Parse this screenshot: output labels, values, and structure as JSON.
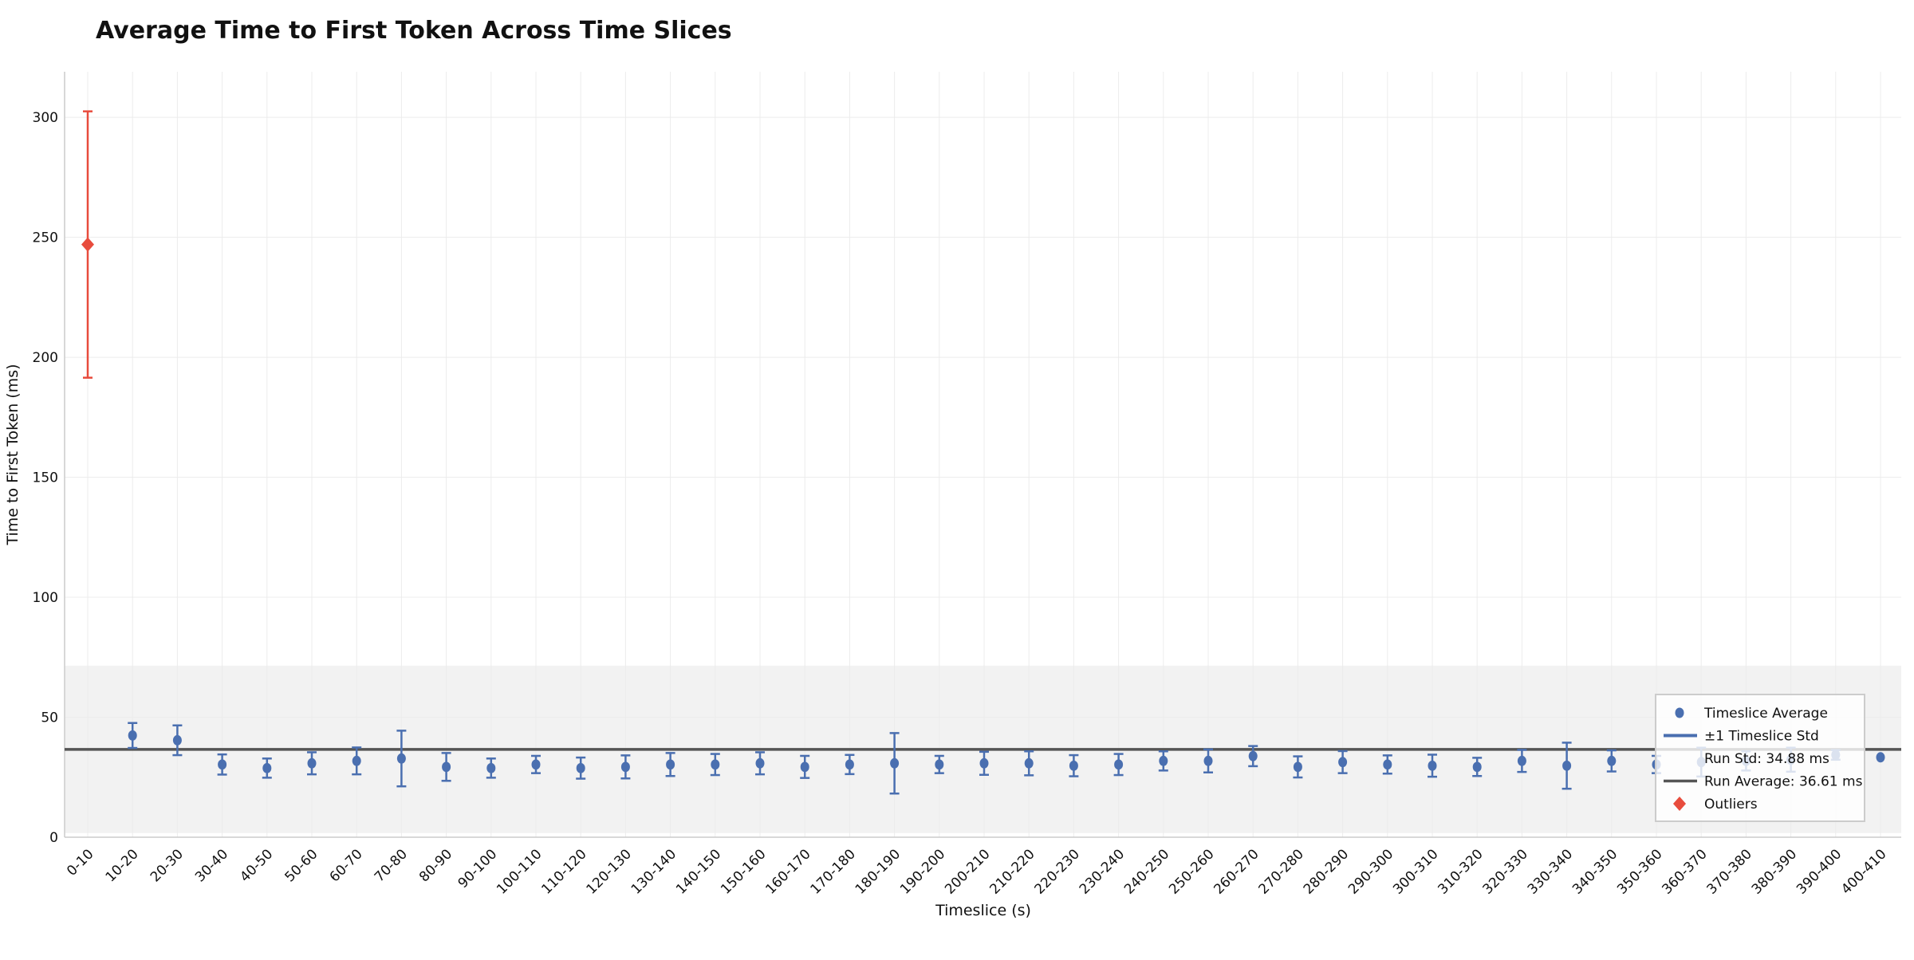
{
  "chart_data": {
    "type": "scatter",
    "title": "Average Time to First Token Across Time Slices",
    "xlabel": "Timeslice (s)",
    "ylabel": "Time to First Token (ms)",
    "ylim": [
      0,
      319
    ],
    "yticks": [
      0,
      50,
      100,
      150,
      200,
      250,
      300
    ],
    "grid": true,
    "legend_placement": "lower-right",
    "categories": [
      "0-10",
      "10-20",
      "20-30",
      "30-40",
      "40-50",
      "50-60",
      "60-70",
      "70-80",
      "80-90",
      "90-100",
      "100-110",
      "110-120",
      "120-130",
      "130-140",
      "140-150",
      "150-160",
      "160-170",
      "170-180",
      "180-190",
      "190-200",
      "200-210",
      "210-220",
      "220-230",
      "230-240",
      "240-250",
      "250-260",
      "260-270",
      "270-280",
      "280-290",
      "290-300",
      "300-310",
      "310-320",
      "320-330",
      "330-340",
      "340-350",
      "350-360",
      "360-370",
      "370-380",
      "380-390",
      "390-400",
      "400-410"
    ],
    "values": [
      247,
      42.4,
      40.4,
      30.3,
      28.8,
      30.8,
      31.8,
      32.8,
      29.3,
      28.8,
      30.3,
      28.8,
      29.3,
      30.3,
      30.3,
      30.8,
      29.3,
      30.3,
      30.8,
      30.3,
      30.8,
      30.8,
      29.8,
      30.3,
      31.8,
      31.8,
      33.8,
      29.3,
      31.3,
      30.3,
      29.8,
      29.3,
      31.8,
      29.8,
      31.8,
      30.3,
      31.3,
      31.8,
      32.3,
      34.3,
      33.3
    ],
    "std": [
      55.5,
      5.2,
      6.2,
      4.2,
      4.0,
      4.6,
      5.6,
      11.6,
      5.8,
      4.0,
      3.6,
      4.4,
      4.8,
      4.8,
      4.4,
      4.6,
      4.6,
      4.0,
      12.6,
      3.6,
      4.8,
      5.0,
      4.4,
      4.4,
      4.0,
      4.8,
      4.2,
      4.4,
      4.6,
      3.8,
      4.6,
      3.8,
      4.6,
      9.6,
      4.4,
      3.6,
      6.0,
      4.0,
      5.0,
      2.0,
      0
    ],
    "outlier_indices": [
      0
    ],
    "run_average": 36.61,
    "run_std": 34.88,
    "legend": [
      "Timeslice Average",
      "±1 Timeslice Std",
      "Run Std: 34.88 ms",
      "Run Average: 36.61 ms",
      "Outliers"
    ],
    "colors": {
      "point": "#4a6fb0",
      "outlier": "#e84c3d",
      "run_average": "#555555",
      "band": "#f2f2f2",
      "grid": "#ececec"
    }
  }
}
